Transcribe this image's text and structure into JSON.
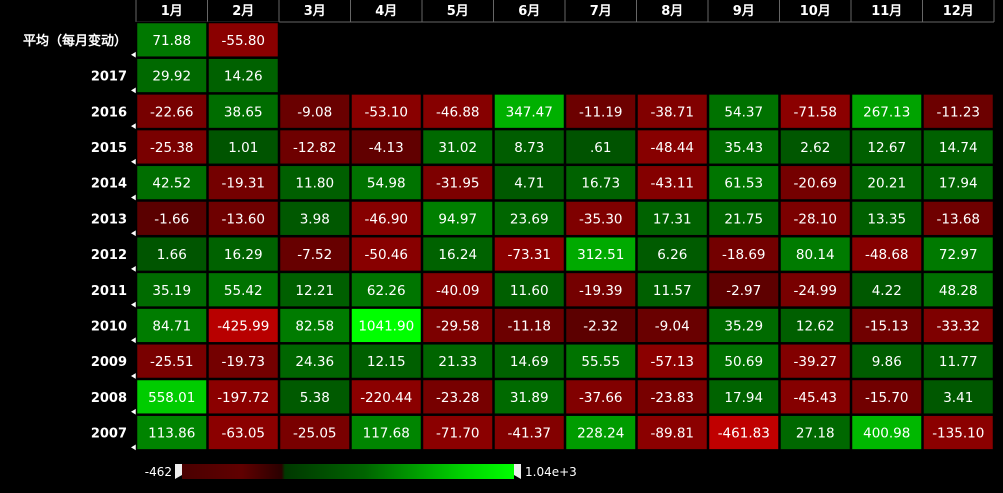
{
  "chart_data": {
    "type": "heatmap",
    "months": [
      "1月",
      "2月",
      "3月",
      "4月",
      "5月",
      "6月",
      "7月",
      "8月",
      "9月",
      "10月",
      "11月",
      "12月"
    ],
    "rows": [
      {
        "label": "平均（每月变动）",
        "values": [
          71.88,
          -55.8,
          null,
          null,
          null,
          null,
          null,
          null,
          null,
          null,
          null,
          null
        ]
      },
      {
        "label": "2017",
        "values": [
          29.92,
          14.26,
          null,
          null,
          null,
          null,
          null,
          null,
          null,
          null,
          null,
          null
        ]
      },
      {
        "label": "2016",
        "values": [
          -22.66,
          38.65,
          -9.08,
          -53.1,
          -46.88,
          347.47,
          -11.19,
          -38.71,
          54.37,
          -71.58,
          267.13,
          -11.23
        ]
      },
      {
        "label": "2015",
        "values": [
          -25.38,
          1.01,
          -12.82,
          -4.13,
          31.02,
          8.73,
          0.61,
          -48.44,
          35.43,
          2.62,
          12.67,
          14.74
        ]
      },
      {
        "label": "2014",
        "values": [
          42.52,
          -19.31,
          11.8,
          54.98,
          -31.95,
          4.71,
          16.73,
          -43.11,
          61.53,
          -20.69,
          20.21,
          17.94
        ]
      },
      {
        "label": "2013",
        "values": [
          -1.66,
          -13.6,
          3.98,
          -46.9,
          94.97,
          23.69,
          -35.3,
          17.31,
          21.75,
          -28.1,
          13.35,
          -13.68
        ]
      },
      {
        "label": "2012",
        "values": [
          1.66,
          16.29,
          -7.52,
          -50.46,
          16.24,
          -73.31,
          312.51,
          6.26,
          -18.69,
          80.14,
          -48.68,
          72.97
        ]
      },
      {
        "label": "2011",
        "values": [
          35.19,
          55.42,
          12.21,
          62.26,
          -40.09,
          11.6,
          -19.39,
          11.57,
          -2.97,
          -24.99,
          4.22,
          48.28
        ]
      },
      {
        "label": "2010",
        "values": [
          84.71,
          -425.99,
          82.58,
          1041.9,
          -29.58,
          -11.18,
          -2.32,
          -9.04,
          35.29,
          12.62,
          -15.13,
          -33.32
        ]
      },
      {
        "label": "2009",
        "values": [
          -25.51,
          -19.73,
          24.36,
          12.15,
          21.33,
          14.69,
          55.55,
          -57.13,
          50.69,
          -39.27,
          9.86,
          11.77
        ]
      },
      {
        "label": "2008",
        "values": [
          558.01,
          -197.72,
          5.38,
          -220.44,
          -23.28,
          31.89,
          -37.66,
          -23.83,
          17.94,
          -45.43,
          -15.7,
          3.41
        ]
      },
      {
        "label": "2007",
        "values": [
          113.86,
          -63.05,
          -25.05,
          117.68,
          -71.7,
          -41.37,
          228.24,
          -89.81,
          -461.83,
          27.18,
          400.98,
          -135.1
        ]
      }
    ],
    "display": {
      "2015": {
        "6": ".61"
      }
    },
    "color_scale": {
      "min": -462,
      "max": 1041.9,
      "min_label": "-462",
      "max_label": "1.04e+3",
      "negative_color": "#8b0000",
      "zero_color": "#003a00",
      "positive_color": "#00ff00",
      "background": "#000000"
    }
  }
}
